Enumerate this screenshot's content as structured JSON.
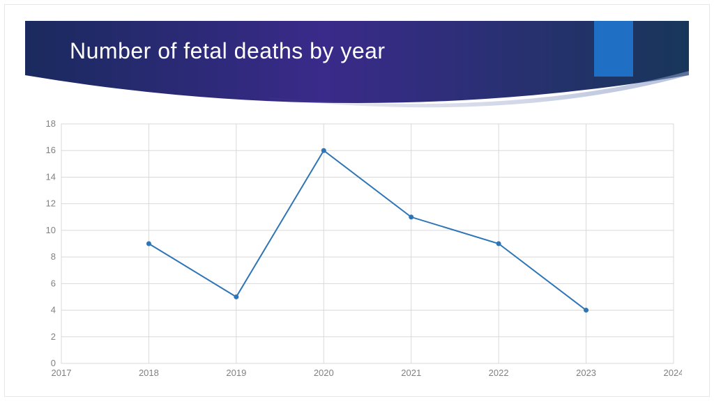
{
  "title": "Number of fetal deaths by year",
  "header": {
    "gradient_from": "#1a2a5e",
    "gradient_mid": "#3a2a8a",
    "gradient_to": "#18365a",
    "curve_highlight": "#6a7bb5",
    "ribbon_color": "#1f6fc4",
    "title_color": "#ffffff",
    "title_fontsize": 32
  },
  "chart": {
    "type": "line",
    "x_values": [
      2018,
      2019,
      2020,
      2021,
      2022,
      2023
    ],
    "y_values": [
      9,
      5,
      16,
      11,
      9,
      4
    ],
    "line_color": "#2e75b6",
    "line_width": 2,
    "marker_color": "#2e75b6",
    "marker_radius": 3.5,
    "xlim": [
      2017,
      2024
    ],
    "ylim": [
      0,
      18
    ],
    "xtick_step": 1,
    "ytick_step": 2,
    "xticks": [
      2017,
      2018,
      2019,
      2020,
      2021,
      2022,
      2023,
      2024
    ],
    "yticks": [
      0,
      2,
      4,
      6,
      8,
      10,
      12,
      14,
      16,
      18
    ],
    "grid_color": "#d9d9d9",
    "axis_label_color": "#808080",
    "axis_label_fontsize": 13,
    "background_color": "#ffffff",
    "plot_border_color": "#d9d9d9"
  }
}
